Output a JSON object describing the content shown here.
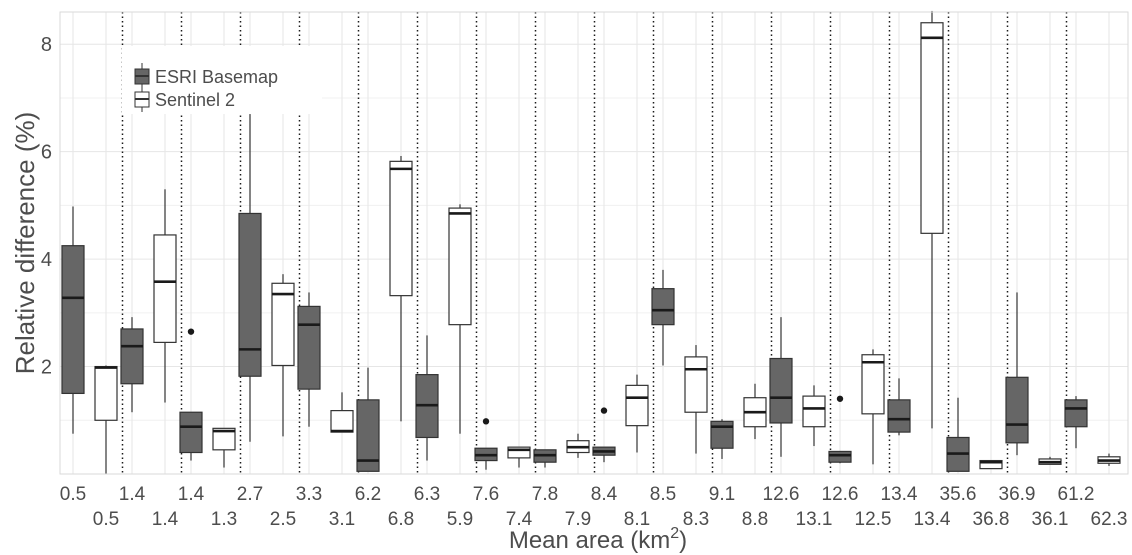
{
  "chart_data": {
    "type": "boxplot",
    "xlabel": "Mean area (km",
    "xlabel_sup": "2",
    "xlabel_end": ")",
    "ylabel": "Relative difference (%)",
    "ylim": [
      0,
      8.6
    ],
    "y_ticks": [
      2,
      4,
      6,
      8
    ],
    "grid": true,
    "legend_position": "top-left",
    "colors": {
      "esri": "#666666",
      "sentinel": "#ffffff",
      "line": "#333333",
      "grid": "#e6e6e6"
    },
    "series": [
      {
        "name": "ESRI Basemap",
        "key": "esri"
      },
      {
        "name": "Sentinel 2",
        "key": "sentinel"
      }
    ],
    "pairs": [
      {
        "esri_label": "0.5",
        "sentinel_label": "0.5",
        "esri": {
          "min": 0.75,
          "q1": 1.5,
          "median": 3.28,
          "q3": 4.25,
          "max": 4.98,
          "outliers": []
        },
        "sentinel": {
          "min": 0.0,
          "q1": 1.0,
          "median": 1.98,
          "q3": 2.0,
          "max": 2.02,
          "outliers": []
        }
      },
      {
        "esri_label": "1.4",
        "sentinel_label": "1.4",
        "esri": {
          "min": 1.15,
          "q1": 1.68,
          "median": 2.38,
          "q3": 2.7,
          "max": 2.92,
          "outliers": []
        },
        "sentinel": {
          "min": 1.33,
          "q1": 2.45,
          "median": 3.58,
          "q3": 4.45,
          "max": 5.3,
          "outliers": []
        }
      },
      {
        "esri_label": "1.4",
        "sentinel_label": "1.3",
        "esri": {
          "min": 0.25,
          "q1": 0.4,
          "median": 0.88,
          "q3": 1.15,
          "max": 1.15,
          "outliers": [
            2.65
          ]
        },
        "sentinel": {
          "min": 0.12,
          "q1": 0.45,
          "median": 0.8,
          "q3": 0.85,
          "max": 0.85,
          "outliers": []
        }
      },
      {
        "esri_label": "2.7",
        "sentinel_label": "2.5",
        "esri": {
          "min": 0.6,
          "q1": 1.82,
          "median": 2.32,
          "q3": 4.85,
          "max": 6.7,
          "outliers": []
        },
        "sentinel": {
          "min": 0.7,
          "q1": 2.02,
          "median": 3.35,
          "q3": 3.55,
          "max": 3.72,
          "outliers": []
        }
      },
      {
        "esri_label": "3.3",
        "sentinel_label": "3.1",
        "esri": {
          "min": 0.88,
          "q1": 1.58,
          "median": 2.78,
          "q3": 3.12,
          "max": 3.38,
          "outliers": []
        },
        "sentinel": {
          "min": 0.78,
          "q1": 0.78,
          "median": 0.8,
          "q3": 1.18,
          "max": 1.52,
          "outliers": []
        }
      },
      {
        "esri_label": "6.2",
        "sentinel_label": "6.8",
        "esri": {
          "min": 0.05,
          "q1": 0.05,
          "median": 0.25,
          "q3": 1.38,
          "max": 1.98,
          "outliers": []
        },
        "sentinel": {
          "min": 0.98,
          "q1": 3.32,
          "median": 5.68,
          "q3": 5.82,
          "max": 5.92,
          "outliers": []
        }
      },
      {
        "esri_label": "6.3",
        "sentinel_label": "5.9",
        "esri": {
          "min": 0.25,
          "q1": 0.68,
          "median": 1.28,
          "q3": 1.85,
          "max": 2.58,
          "outliers": []
        },
        "sentinel": {
          "min": 0.75,
          "q1": 2.78,
          "median": 4.85,
          "q3": 4.95,
          "max": 5.02,
          "outliers": []
        }
      },
      {
        "esri_label": "7.6",
        "sentinel_label": "7.4",
        "esri": {
          "min": 0.08,
          "q1": 0.25,
          "median": 0.35,
          "q3": 0.48,
          "max": 0.48,
          "outliers": [
            0.98
          ]
        },
        "sentinel": {
          "min": 0.12,
          "q1": 0.3,
          "median": 0.45,
          "q3": 0.5,
          "max": 0.5,
          "outliers": []
        }
      },
      {
        "esri_label": "7.8",
        "sentinel_label": "7.9",
        "esri": {
          "min": 0.12,
          "q1": 0.22,
          "median": 0.35,
          "q3": 0.45,
          "max": 0.45,
          "outliers": []
        },
        "sentinel": {
          "min": 0.3,
          "q1": 0.4,
          "median": 0.5,
          "q3": 0.62,
          "max": 0.75,
          "outliers": []
        }
      },
      {
        "esri_label": "8.4",
        "sentinel_label": "8.1",
        "esri": {
          "min": 0.22,
          "q1": 0.35,
          "median": 0.42,
          "q3": 0.5,
          "max": 0.5,
          "outliers": [
            1.18
          ]
        },
        "sentinel": {
          "min": 0.4,
          "q1": 0.9,
          "median": 1.42,
          "q3": 1.65,
          "max": 1.85,
          "outliers": []
        }
      },
      {
        "esri_label": "8.5",
        "sentinel_label": "8.3",
        "esri": {
          "min": 2.02,
          "q1": 2.78,
          "median": 3.05,
          "q3": 3.45,
          "max": 3.8,
          "outliers": []
        },
        "sentinel": {
          "min": 0.38,
          "q1": 1.15,
          "median": 1.95,
          "q3": 2.18,
          "max": 2.4,
          "outliers": []
        }
      },
      {
        "esri_label": "9.1",
        "sentinel_label": "8.8",
        "esri": {
          "min": 0.28,
          "q1": 0.48,
          "median": 0.88,
          "q3": 0.98,
          "max": 1.02,
          "outliers": []
        },
        "sentinel": {
          "min": 0.65,
          "q1": 0.88,
          "median": 1.15,
          "q3": 1.42,
          "max": 1.68,
          "outliers": []
        }
      },
      {
        "esri_label": "12.6",
        "sentinel_label": "13.1",
        "esri": {
          "min": 0.32,
          "q1": 0.95,
          "median": 1.42,
          "q3": 2.15,
          "max": 2.92,
          "outliers": []
        },
        "sentinel": {
          "min": 0.52,
          "q1": 0.88,
          "median": 1.22,
          "q3": 1.45,
          "max": 1.65,
          "outliers": []
        }
      },
      {
        "esri_label": "12.6",
        "sentinel_label": "12.5",
        "esri": {
          "min": 0.2,
          "q1": 0.22,
          "median": 0.35,
          "q3": 0.42,
          "max": 0.42,
          "outliers": [
            1.4
          ]
        },
        "sentinel": {
          "min": 0.18,
          "q1": 1.12,
          "median": 2.08,
          "q3": 2.22,
          "max": 2.32,
          "outliers": []
        }
      },
      {
        "esri_label": "13.4",
        "sentinel_label": "13.4",
        "esri": {
          "min": 0.72,
          "q1": 0.78,
          "median": 1.02,
          "q3": 1.38,
          "max": 1.78,
          "outliers": []
        },
        "sentinel": {
          "min": 0.85,
          "q1": 4.48,
          "median": 8.12,
          "q3": 8.4,
          "max": 8.62,
          "outliers": []
        }
      },
      {
        "esri_label": "35.6",
        "sentinel_label": "36.8",
        "esri": {
          "min": 0.05,
          "q1": 0.05,
          "median": 0.38,
          "q3": 0.68,
          "max": 1.42,
          "outliers": []
        },
        "sentinel": {
          "min": 0.1,
          "q1": 0.1,
          "median": 0.22,
          "q3": 0.25,
          "max": 0.25,
          "outliers": []
        }
      },
      {
        "esri_label": "36.9",
        "sentinel_label": "36.1",
        "esri": {
          "min": 0.35,
          "q1": 0.58,
          "median": 0.92,
          "q3": 1.8,
          "max": 3.38,
          "outliers": []
        },
        "sentinel": {
          "min": 0.18,
          "q1": 0.18,
          "median": 0.22,
          "q3": 0.28,
          "max": 0.32,
          "outliers": []
        }
      },
      {
        "esri_label": "61.2",
        "sentinel_label": "62.3",
        "esri": {
          "min": 0.48,
          "q1": 0.88,
          "median": 1.22,
          "q3": 1.38,
          "max": 1.45,
          "outliers": []
        },
        "sentinel": {
          "min": 0.15,
          "q1": 0.2,
          "median": 0.25,
          "q3": 0.32,
          "max": 0.38,
          "outliers": []
        }
      }
    ]
  }
}
